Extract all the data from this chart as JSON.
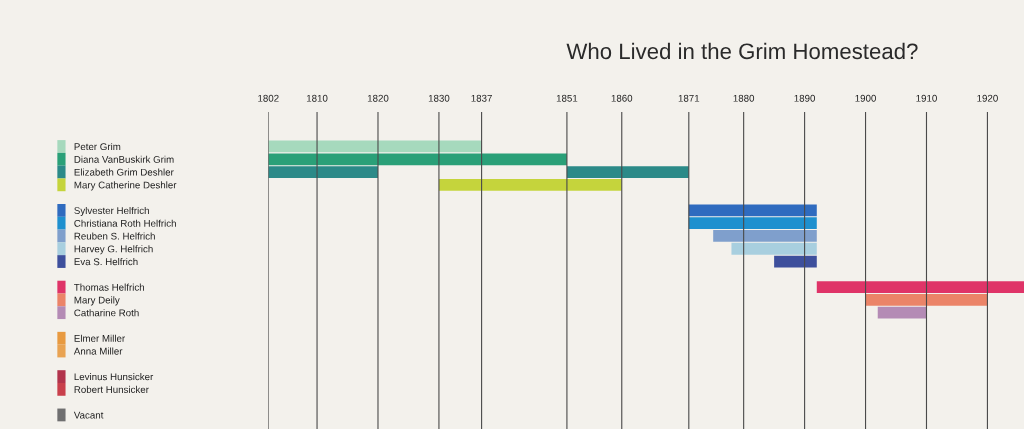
{
  "chart_data": {
    "type": "bar",
    "orientation": "horizontal",
    "title": "Who Lived in the Grim Homestead?",
    "categories": [
      "Peter Grim",
      "Diana VanBuskirk Grim",
      "Elizabeth Grim Deshler",
      "Mary Catherine Deshler",
      null,
      "Sylvester Helfrich",
      "Christiana Roth Helfrich",
      "Reuben S. Helfrich",
      "Harvey G. Helfrich",
      "Eva S. Helfrich",
      null,
      "Thomas Helfrich",
      "Mary Deily",
      "Catharine Roth",
      null,
      "Elmer Miller",
      "Anna Miller",
      null,
      "Levinus Hunsicker",
      "Robert Hunsicker",
      null,
      "Vacant"
    ],
    "series": [
      {
        "base": [
          1802,
          1802,
          1802,
          1830,
          null,
          1871,
          1871,
          1875,
          1878,
          1885,
          null,
          1892,
          1900,
          1902,
          null,
          null,
          null,
          null,
          null,
          null,
          null,
          null
        ],
        "values": [
          35,
          49,
          18,
          30,
          null,
          21,
          21,
          17,
          14,
          7,
          null,
          34,
          20,
          8,
          null,
          null,
          null,
          null,
          null,
          null,
          null,
          null
        ],
        "colors": [
          "#a6d9bd",
          "#2aa078",
          "#2b8a88",
          "#c5d43c",
          null,
          "#2f6bbf",
          "#1e90cf",
          "#7f9fcc",
          "#a8cfdf",
          "#3d4f9c",
          null,
          "#df3468",
          "#eb8468",
          "#b48bb5",
          null,
          "#e89a40",
          "#e9a352",
          null,
          "#b2344c",
          "#c9404c",
          null,
          "#6f6f70"
        ]
      },
      {
        "base": [
          null,
          null,
          1851,
          null,
          null,
          null,
          null,
          null,
          null,
          null,
          null,
          null,
          null,
          null,
          null,
          null,
          null,
          null,
          null,
          null,
          null,
          null
        ],
        "values": [
          null,
          null,
          20,
          null,
          null,
          null,
          null,
          null,
          null,
          null,
          null,
          null,
          null,
          null,
          null,
          null,
          null,
          null,
          null,
          null,
          null,
          null
        ],
        "color": "#2b8a88"
      }
    ],
    "xlim": [
      1802,
      1926
    ],
    "xticks": [
      1802,
      1810,
      1820,
      1830,
      1837,
      1851,
      1860,
      1871,
      1880,
      1890,
      1900,
      1910,
      1920
    ],
    "grid": "x",
    "legend": false
  }
}
